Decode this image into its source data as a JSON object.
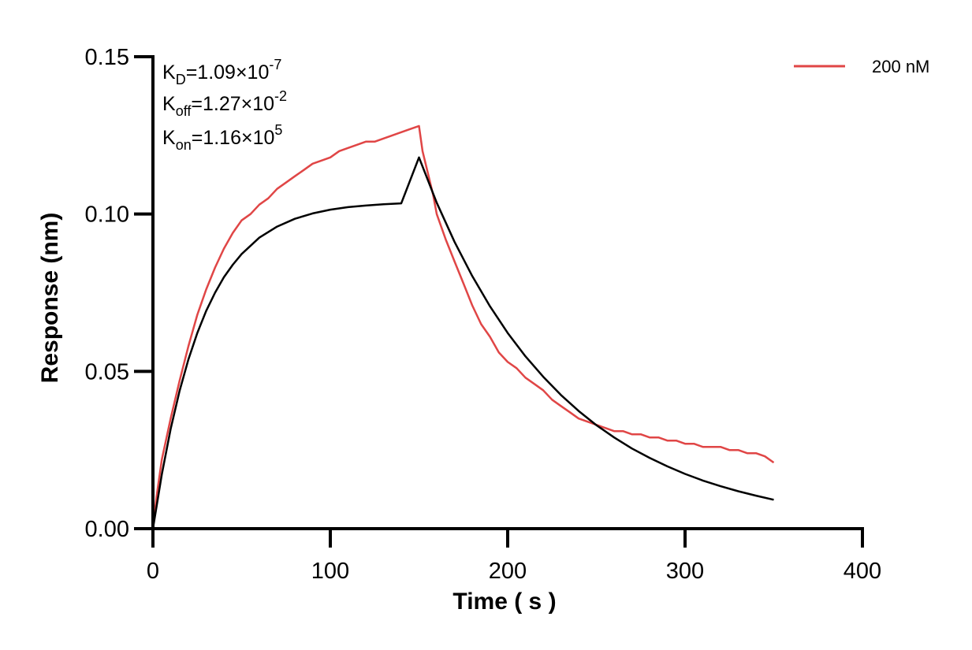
{
  "chart_data": {
    "type": "line",
    "title": "",
    "xlabel": "Time ( s )",
    "ylabel": "Response (nm)",
    "xlim": [
      0,
      400
    ],
    "ylim": [
      0,
      0.15
    ],
    "x_ticks": [
      0,
      100,
      200,
      300,
      400
    ],
    "x_tick_labels": [
      "0",
      "100",
      "200",
      "300",
      "400"
    ],
    "y_ticks": [
      0,
      0.05,
      0.1,
      0.15
    ],
    "y_tick_labels": [
      "0.00",
      "0.05",
      "0.10",
      "0.15"
    ],
    "grid": false,
    "legend_position": "top-right",
    "annotations": {
      "kd": {
        "sym": "K",
        "sub": "D",
        "eq": "=1.09×10",
        "sup": "-7"
      },
      "koff": {
        "sym": "K",
        "sub": "off",
        "eq": "=1.27×10",
        "sup": "-2"
      },
      "kon": {
        "sym": "K",
        "sub": "on",
        "eq": "=1.16×10",
        "sup": "5"
      }
    },
    "series": [
      {
        "name": "200 nM",
        "color": "#e04646",
        "x": [
          0,
          2,
          5,
          10,
          15,
          20,
          25,
          30,
          35,
          40,
          45,
          50,
          55,
          60,
          65,
          70,
          75,
          80,
          85,
          90,
          95,
          100,
          105,
          110,
          115,
          120,
          125,
          130,
          135,
          140,
          145,
          150,
          152,
          155,
          158,
          160,
          165,
          170,
          175,
          180,
          185,
          190,
          195,
          200,
          205,
          210,
          215,
          220,
          225,
          230,
          235,
          240,
          245,
          250,
          255,
          260,
          265,
          270,
          275,
          280,
          285,
          290,
          295,
          300,
          305,
          310,
          315,
          320,
          325,
          330,
          335,
          340,
          345,
          350
        ],
        "y": [
          0.0,
          0.01,
          0.022,
          0.035,
          0.047,
          0.058,
          0.068,
          0.076,
          0.083,
          0.089,
          0.094,
          0.098,
          0.1,
          0.103,
          0.105,
          0.108,
          0.11,
          0.112,
          0.114,
          0.116,
          0.117,
          0.118,
          0.12,
          0.121,
          0.122,
          0.123,
          0.123,
          0.124,
          0.125,
          0.126,
          0.127,
          0.128,
          0.12,
          0.113,
          0.106,
          0.1,
          0.092,
          0.085,
          0.078,
          0.071,
          0.065,
          0.061,
          0.056,
          0.053,
          0.051,
          0.048,
          0.046,
          0.044,
          0.041,
          0.039,
          0.037,
          0.035,
          0.034,
          0.033,
          0.032,
          0.031,
          0.031,
          0.03,
          0.03,
          0.029,
          0.029,
          0.028,
          0.028,
          0.027,
          0.027,
          0.026,
          0.026,
          0.026,
          0.025,
          0.025,
          0.024,
          0.024,
          0.023,
          0.021
        ]
      },
      {
        "name": "",
        "color": "#000000",
        "x": [
          0,
          5,
          10,
          15,
          20,
          25,
          30,
          35,
          40,
          45,
          50,
          60,
          70,
          80,
          90,
          100,
          110,
          120,
          130,
          140,
          150,
          160,
          170,
          180,
          190,
          200,
          210,
          220,
          230,
          240,
          250,
          260,
          270,
          280,
          290,
          300,
          310,
          320,
          330,
          340,
          350
        ],
        "y": [
          0.0,
          0.0173,
          0.0317,
          0.0438,
          0.0538,
          0.0622,
          0.0692,
          0.075,
          0.0799,
          0.0839,
          0.0873,
          0.0925,
          0.096,
          0.0985,
          0.1002,
          0.1014,
          0.1022,
          0.1027,
          0.1031,
          0.1034,
          0.118,
          0.1036,
          0.0912,
          0.0803,
          0.0707,
          0.0622,
          0.0548,
          0.0483,
          0.0425,
          0.0374,
          0.0329,
          0.029,
          0.0255,
          0.0225,
          0.0198,
          0.0174,
          0.0153,
          0.0135,
          0.0119,
          0.0105,
          0.0092
        ]
      }
    ]
  }
}
